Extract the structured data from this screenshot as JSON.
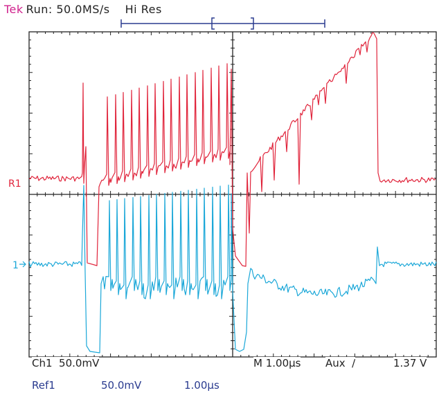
{
  "header": {
    "brand": "Tek",
    "run_state": "Run: 50.0MS/s",
    "acq_mode": "Hi Res"
  },
  "markers": {
    "ref": "R1",
    "ch1": "1"
  },
  "status_bar": {
    "ch1_scale": "Ch1  50.0mV",
    "timebase": "M 1.00µs",
    "trigger": "Aux  ∕",
    "trigger_level": "1.37 V"
  },
  "ref_bar": {
    "ref_name": "Ref1",
    "ref_scale": "50.0mV",
    "ref_time": "1.00µs"
  },
  "colors": {
    "ref_trace": "#e0233a",
    "ch1_trace": "#1aa7d8",
    "grid": "#222222",
    "record_bar": "#2a3b8f"
  }
}
